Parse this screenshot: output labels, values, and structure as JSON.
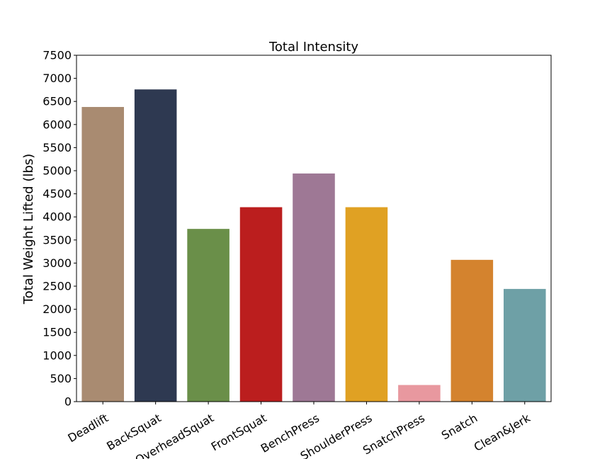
{
  "chart_data": {
    "type": "bar",
    "title": "Total Intensity",
    "xlabel": "",
    "ylabel": "Total Weight Lifted (lbs)",
    "ylim": [
      0,
      7500
    ],
    "yticks": [
      0,
      500,
      1000,
      1500,
      2000,
      2500,
      3000,
      3500,
      4000,
      4500,
      5000,
      5500,
      6000,
      6500,
      7000,
      7500
    ],
    "categories": [
      "Deadlift",
      "BackSquat",
      "OverheadSquat",
      "FrontSquat",
      "BenchPress",
      "ShoulderPress",
      "SnatchPress",
      "Snatch",
      "Clean&Jerk"
    ],
    "values": [
      6380,
      6760,
      3740,
      4210,
      4940,
      4210,
      360,
      3070,
      2440
    ],
    "colors": [
      "#a98b71",
      "#2e3951",
      "#6a8f49",
      "#bb1e1e",
      "#9e7895",
      "#e0a123",
      "#e8989f",
      "#d4832e",
      "#6ea0a6"
    ],
    "grid": false,
    "legend": "none"
  }
}
